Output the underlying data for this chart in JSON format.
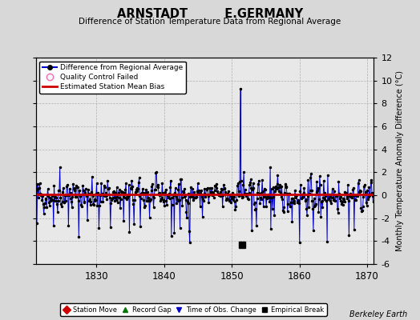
{
  "title": "ARNSTADT         E.GERMANY",
  "subtitle": "Difference of Station Temperature Data from Regional Average",
  "ylabel_right": "Monthly Temperature Anomaly Difference (°C)",
  "credit": "Berkeley Earth",
  "xlim": [
    1821,
    1871
  ],
  "ylim": [
    -6,
    12
  ],
  "yticks": [
    -6,
    -4,
    -2,
    0,
    2,
    4,
    6,
    8,
    10,
    12
  ],
  "xticks": [
    1830,
    1840,
    1850,
    1860,
    1870
  ],
  "xticklabels": [
    "1830",
    "1840",
    "1850",
    "1860",
    "1870"
  ],
  "bg_color": "#d8d8d8",
  "plot_bg_color": "#e8e8e8",
  "grid_color": "#b0b0b0",
  "line_color": "#0000cc",
  "bias_color": "#cc0000",
  "marker_color": "#000000",
  "seed": 42,
  "n_points": 588,
  "year_start": 1821.0,
  "year_end": 1870.9,
  "bias_value": 0.1,
  "spike_year": 1851.3,
  "spike_value": 9.3,
  "empirical_break_year": 1851.5,
  "empirical_break_value": -4.3,
  "vertical_line_year": 1851.3
}
